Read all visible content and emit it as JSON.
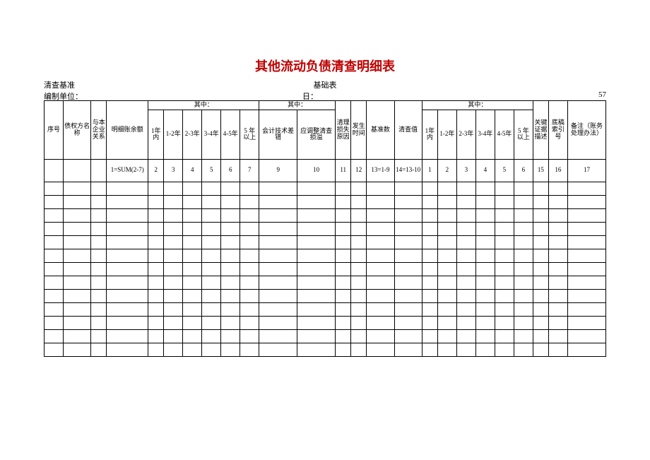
{
  "title": "其他流动负债清查明细表",
  "sub_left": "清查基准",
  "sub_center": "基础表",
  "meta_left": "编制单位：",
  "meta_center": "日：",
  "meta_right": "57",
  "hdr": {
    "seq": "序号",
    "creditor": "债权方名称",
    "relation": "与本企业关系",
    "balance": "明细账余额",
    "grp1": "其中：",
    "y1": "1年内",
    "y12": "1-2年",
    "y23": "2-3年",
    "y34": "3-4年",
    "y45": "4-5年",
    "y5p": "5 年以上",
    "grp2": "其中：",
    "acct_err": "会计技术差错",
    "adj_loss": "应调整清查损溢",
    "loss_reason": "清理损失原因",
    "occur_time": "发生时间",
    "base_num": "基准数",
    "chk_val": "清查值",
    "grp3": "其中：",
    "ya1": "1年内",
    "ya12": "1-2年",
    "ya23": "2-3年",
    "ya34": "3-4年",
    "ya45": "4-5年",
    "ya5p": "5 年以上",
    "key_desc": "关键证据描述",
    "draft_ref": "底稿索引号",
    "remark": "备注（账务处理办法）"
  },
  "num": {
    "c1": "1=SUM(2-7)",
    "c2": "2",
    "c3": "3",
    "c4": "4",
    "c5": "5",
    "c6": "6",
    "c7": "7",
    "c8": "9",
    "c9": "10",
    "c10": "11",
    "c11": "12",
    "c12": "13=1-9",
    "c13": "14=13-10",
    "c14": "1",
    "c15": "2",
    "c16": "3",
    "c17": "4",
    "c18": "5",
    "c19": "6",
    "c20": "15",
    "c21": "16",
    "c22": "17"
  },
  "blank_rows": 13
}
